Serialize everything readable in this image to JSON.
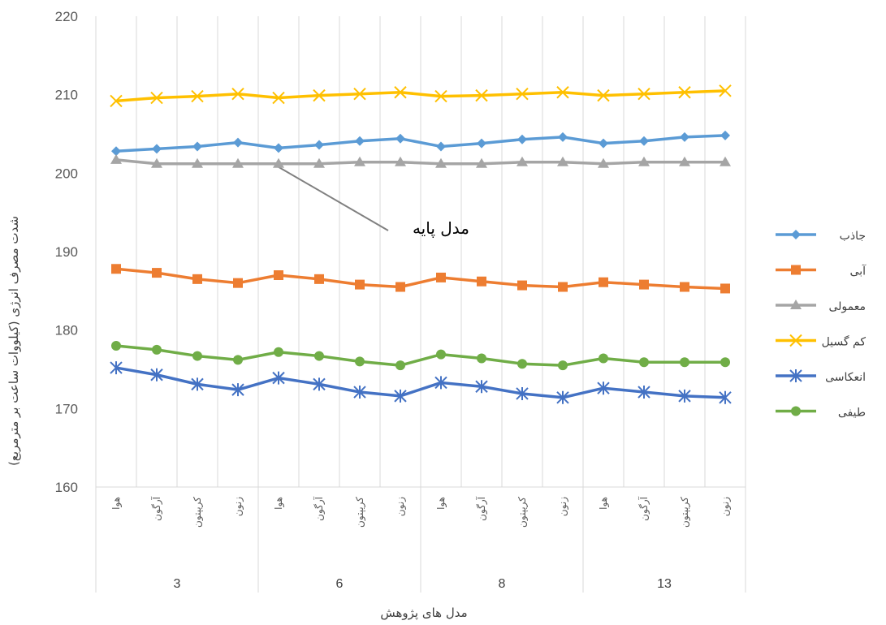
{
  "chart_data": {
    "type": "line",
    "title": "",
    "xlabel": "مدل های پژوهش",
    "ylabel": "شدت مصرف انرژی (کیلووات ساعت بر مترمربع)",
    "ylim": [
      160,
      220
    ],
    "yticks": [
      160,
      170,
      180,
      190,
      200,
      210,
      220
    ],
    "grid": "vertical",
    "legend": "right",
    "groups": [
      {
        "label": "3",
        "categories": [
          "هوا",
          "آرگون",
          "کریپتون",
          "زنون"
        ]
      },
      {
        "label": "6",
        "categories": [
          "هوا",
          "آرگون",
          "کریپتون",
          "زنون"
        ]
      },
      {
        "label": "8",
        "categories": [
          "هوا",
          "آرگون",
          "کریپتون",
          "زنون"
        ]
      },
      {
        "label": "13",
        "categories": [
          "هوا",
          "آرگون",
          "کریپتون",
          "زنون"
        ]
      }
    ],
    "series": [
      {
        "name": "جاذب",
        "color": "#5B9BD5",
        "marker": "diamond",
        "values": [
          202.8,
          203.1,
          203.4,
          203.9,
          203.2,
          203.6,
          204.1,
          204.4,
          203.4,
          203.8,
          204.3,
          204.6,
          203.8,
          204.1,
          204.6,
          204.8
        ]
      },
      {
        "name": "آبی",
        "color": "#ED7D31",
        "marker": "square",
        "values": [
          187.8,
          187.3,
          186.5,
          186.0,
          187.0,
          186.5,
          185.8,
          185.5,
          186.7,
          186.2,
          185.7,
          185.5,
          186.1,
          185.8,
          185.5,
          185.3
        ]
      },
      {
        "name": "معمولی",
        "color": "#A5A5A5",
        "marker": "triangle",
        "values": [
          201.7,
          201.2,
          201.2,
          201.2,
          201.2,
          201.2,
          201.4,
          201.4,
          201.2,
          201.2,
          201.4,
          201.4,
          201.2,
          201.4,
          201.4,
          201.4
        ]
      },
      {
        "name": "کم گسیل",
        "color": "#FFC000",
        "marker": "x",
        "values": [
          209.2,
          209.6,
          209.8,
          210.1,
          209.6,
          209.9,
          210.1,
          210.3,
          209.8,
          209.9,
          210.1,
          210.3,
          209.9,
          210.1,
          210.3,
          210.5
        ]
      },
      {
        "name": "انعکاسی",
        "color": "#4472C4",
        "marker": "star",
        "values": [
          175.2,
          174.3,
          173.1,
          172.4,
          173.9,
          173.1,
          172.1,
          171.6,
          173.3,
          172.8,
          171.9,
          171.4,
          172.6,
          172.1,
          171.6,
          171.4
        ]
      },
      {
        "name": "طیفی",
        "color": "#70AD47",
        "marker": "circle",
        "values": [
          178.0,
          177.5,
          176.7,
          176.2,
          177.2,
          176.7,
          176.0,
          175.5,
          176.9,
          176.4,
          175.7,
          175.5,
          176.4,
          175.9,
          175.9,
          175.9
        ]
      }
    ],
    "annotations": [
      {
        "text": "مدل پایه",
        "series": "معمولی",
        "point_index": 4
      }
    ]
  }
}
